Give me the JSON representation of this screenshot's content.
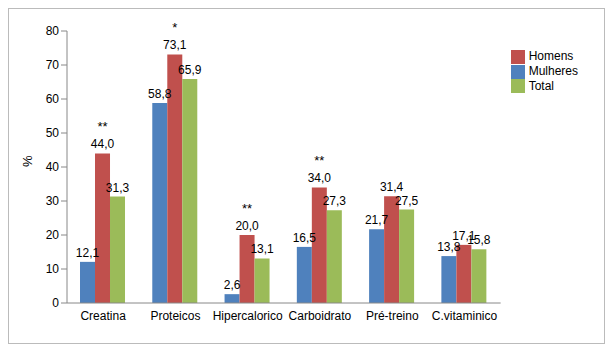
{
  "chart_data": {
    "type": "bar",
    "categories": [
      "Creatina",
      "Proteicos",
      "Hipercalorico",
      "Carboidrato",
      "Pré-treino",
      "C.vitaminico"
    ],
    "series": [
      {
        "name": "Mulheres",
        "color": "#4f81bd",
        "values": [
          12.1,
          58.8,
          2.6,
          16.5,
          21.7,
          13.8
        ],
        "value_labels": [
          "12,1",
          "58,8",
          "2,6",
          "16,5",
          "21,7",
          "13,8"
        ]
      },
      {
        "name": "Homens",
        "color": "#c0504d",
        "values": [
          44.0,
          73.1,
          20.0,
          34.0,
          31.4,
          17.1
        ],
        "value_labels": [
          "44,0",
          "73,1",
          "20,0",
          "34,0",
          "31,4",
          "17,1"
        ]
      },
      {
        "name": "Total",
        "color": "#9bbb59",
        "values": [
          31.3,
          65.9,
          13.1,
          27.3,
          27.5,
          15.8
        ],
        "value_labels": [
          "31,3",
          "65,9",
          "13,1",
          "27,3",
          "27,5",
          "15,8"
        ]
      }
    ],
    "annotations": [
      {
        "category": "Creatina",
        "text": "**"
      },
      {
        "category": "Proteicos",
        "text": "*"
      },
      {
        "category": "Hipercalorico",
        "text": "**"
      },
      {
        "category": "Carboidrato",
        "text": "**"
      }
    ],
    "y_label": "%",
    "ylim": [
      0,
      80
    ],
    "yticks": [
      0,
      10,
      20,
      30,
      40,
      50,
      60,
      70,
      80
    ],
    "grid": false,
    "legend": "right",
    "data_labels": true
  }
}
